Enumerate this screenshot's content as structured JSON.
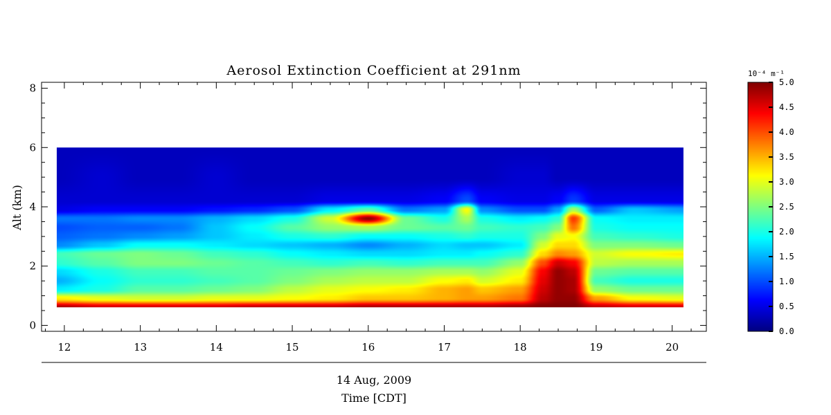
{
  "chart_data": {
    "type": "heatmap",
    "title": "Aerosol Extinction Coefficient at 291nm",
    "xlabel_date": "14 Aug, 2009",
    "xlabel": "Time [CDT]",
    "ylabel": "Alt (km)",
    "xlim": [
      11.7,
      20.45
    ],
    "ylim": [
      -0.2,
      8.2
    ],
    "x_ticks": [
      12,
      13,
      14,
      15,
      16,
      17,
      18,
      19,
      20
    ],
    "y_ticks": [
      0,
      2,
      4,
      6,
      8
    ],
    "data_extent": {
      "x": [
        11.9,
        20.15
      ],
      "y": [
        0.6,
        6.0
      ]
    },
    "colorbar": {
      "unit_label": "10⁻⁴ m⁻¹",
      "range": [
        0,
        5
      ],
      "ticks": [
        "0.0",
        "0.5",
        "1.0",
        "1.5",
        "2.0",
        "2.5",
        "3.0",
        "3.5",
        "4.0",
        "4.5",
        "5.0"
      ],
      "colormap": "jet"
    },
    "altitudes_km": [
      0.6,
      0.9,
      1.2,
      1.5,
      1.8,
      2.1,
      2.4,
      2.7,
      3.0,
      3.3,
      3.6,
      3.9,
      4.2,
      5.0,
      6.0
    ],
    "times_hr": [
      11.9,
      12.5,
      13.0,
      13.5,
      14.0,
      14.5,
      15.0,
      15.5,
      16.0,
      16.5,
      17.0,
      17.3,
      17.5,
      18.0,
      18.3,
      18.5,
      18.7,
      19.0,
      19.5,
      20.15
    ],
    "values": [
      [
        4.8,
        4.6,
        4.6,
        4.6,
        4.6,
        4.7,
        4.7,
        4.7,
        4.8,
        4.8,
        4.8,
        4.8,
        4.8,
        4.9,
        5.0,
        5.0,
        5.0,
        4.7,
        4.6,
        4.6
      ],
      [
        3.2,
        3.0,
        2.9,
        2.9,
        3.0,
        3.0,
        3.1,
        3.2,
        3.4,
        3.4,
        3.5,
        3.6,
        3.6,
        3.8,
        4.7,
        4.9,
        4.9,
        3.6,
        3.1,
        3.0
      ],
      [
        1.8,
        2.0,
        2.3,
        2.3,
        2.4,
        2.5,
        2.8,
        3.0,
        3.1,
        3.2,
        3.5,
        3.6,
        3.4,
        3.6,
        4.6,
        4.9,
        4.8,
        2.6,
        2.4,
        2.4
      ],
      [
        1.5,
        1.9,
        2.1,
        2.1,
        2.2,
        2.3,
        2.5,
        2.7,
        2.8,
        2.8,
        3.1,
        3.2,
        2.9,
        3.2,
        4.5,
        4.9,
        4.8,
        2.2,
        2.0,
        2.0
      ],
      [
        1.7,
        2.0,
        2.2,
        2.2,
        2.3,
        2.3,
        2.4,
        2.5,
        2.6,
        2.6,
        2.7,
        2.7,
        2.6,
        3.0,
        4.4,
        4.9,
        4.7,
        2.4,
        2.3,
        2.3
      ],
      [
        2.1,
        2.3,
        2.5,
        2.5,
        2.4,
        2.3,
        2.2,
        2.1,
        2.2,
        2.1,
        2.2,
        2.2,
        2.2,
        2.6,
        4.0,
        4.6,
        4.4,
        2.8,
        2.7,
        2.7
      ],
      [
        2.2,
        2.4,
        2.5,
        2.4,
        2.2,
        2.1,
        1.9,
        1.8,
        1.7,
        1.7,
        1.8,
        1.8,
        1.9,
        2.1,
        3.3,
        3.7,
        3.6,
        2.9,
        3.1,
        3.2
      ],
      [
        1.3,
        1.6,
        1.9,
        1.9,
        1.8,
        1.7,
        1.6,
        1.5,
        1.3,
        1.5,
        1.7,
        1.6,
        1.6,
        1.8,
        2.9,
        3.3,
        3.3,
        2.5,
        2.5,
        2.4
      ],
      [
        1.1,
        1.2,
        1.3,
        1.4,
        1.6,
        1.8,
        2.0,
        2.1,
        1.9,
        1.9,
        2.0,
        2.1,
        2.0,
        2.0,
        2.5,
        3.0,
        3.1,
        2.2,
        2.1,
        2.0
      ],
      [
        1.0,
        1.1,
        1.1,
        1.2,
        1.6,
        1.9,
        2.3,
        2.6,
        2.7,
        2.4,
        2.3,
        2.4,
        2.2,
        2.1,
        2.2,
        2.5,
        3.8,
        2.0,
        1.9,
        1.9
      ],
      [
        1.2,
        1.2,
        1.3,
        1.3,
        1.5,
        1.7,
        2.0,
        2.9,
        4.9,
        2.4,
        2.0,
        2.7,
        2.0,
        1.8,
        1.9,
        2.1,
        4.1,
        1.9,
        1.8,
        1.8
      ],
      [
        0.5,
        0.6,
        0.6,
        0.6,
        0.7,
        0.8,
        1.0,
        1.8,
        2.3,
        1.2,
        1.4,
        3.1,
        1.3,
        1.0,
        1.0,
        1.4,
        2.7,
        1.1,
        1.6,
        1.4
      ],
      [
        0.4,
        0.4,
        0.4,
        0.4,
        0.4,
        0.4,
        0.4,
        0.5,
        0.5,
        0.5,
        0.6,
        1.0,
        0.6,
        0.5,
        0.5,
        0.6,
        0.9,
        0.5,
        0.5,
        0.5
      ],
      [
        0.3,
        0.4,
        0.3,
        0.3,
        0.4,
        0.3,
        0.3,
        0.3,
        0.3,
        0.3,
        0.3,
        0.3,
        0.3,
        0.4,
        0.4,
        0.3,
        0.3,
        0.3,
        0.3,
        0.3
      ],
      [
        0.3,
        0.3,
        0.3,
        0.3,
        0.3,
        0.3,
        0.3,
        0.3,
        0.3,
        0.3,
        0.3,
        0.3,
        0.3,
        0.3,
        0.3,
        0.3,
        0.3,
        0.3,
        0.3,
        0.3
      ]
    ]
  }
}
